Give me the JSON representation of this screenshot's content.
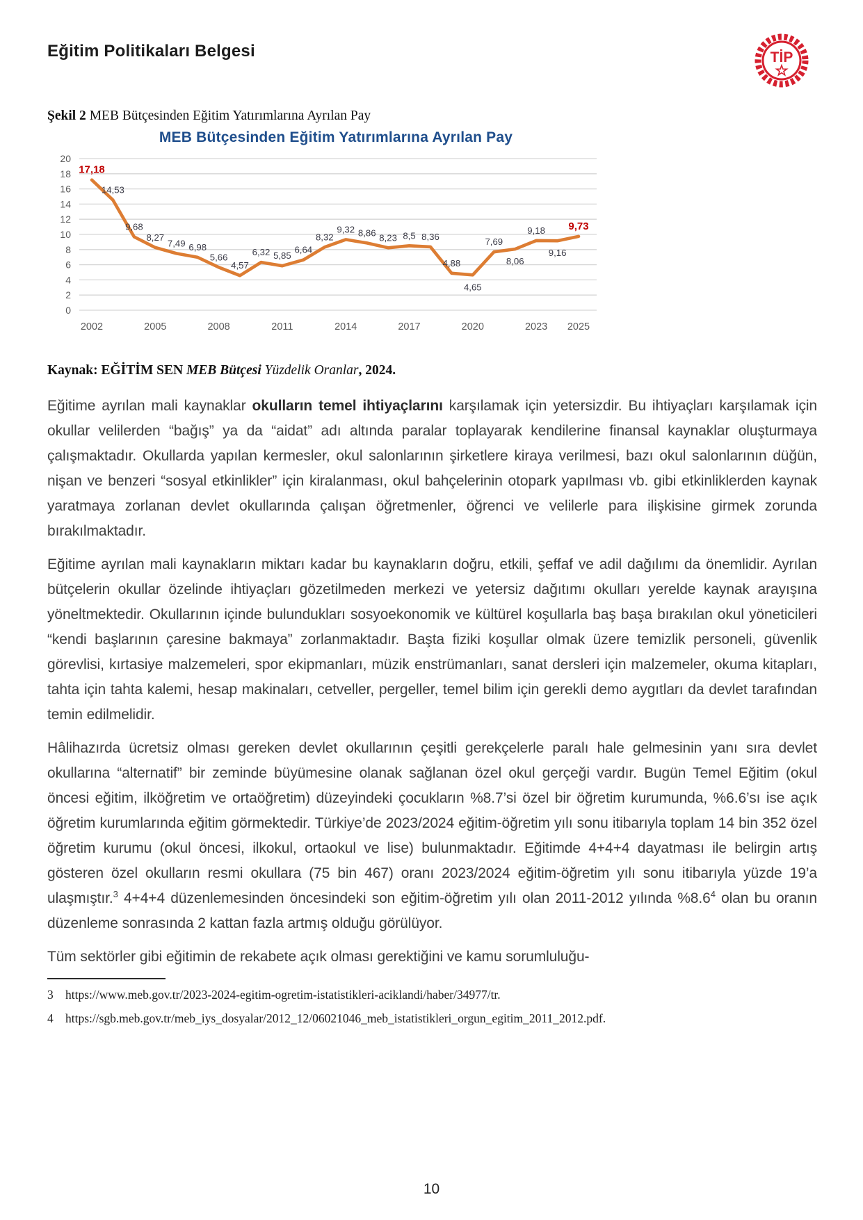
{
  "page": {
    "header_title": "Eğitim Politikaları Belgesi",
    "logo_text": "TİP",
    "page_number": "10"
  },
  "figure": {
    "caption_label": "Şekil 2",
    "caption_text": " MEB Bütçesinden Eğitim Yatırımlarına Ayrılan Pay",
    "source": {
      "prefix": "Kaynak: EĞİTİM SEN ",
      "title_italic": "MEB Bütçesi ",
      "subtitle_italic": "Yüzdelik Oranlar",
      "suffix": ", 2024."
    }
  },
  "chart_data": {
    "type": "line",
    "title": "MEB Bütçesinden Eğitim Yatırımlarına Ayrılan Pay",
    "x": [
      2002,
      2003,
      2004,
      2005,
      2006,
      2007,
      2008,
      2009,
      2010,
      2011,
      2012,
      2013,
      2014,
      2015,
      2016,
      2017,
      2018,
      2019,
      2020,
      2021,
      2022,
      2023,
      2024,
      2025
    ],
    "values": [
      17.18,
      14.53,
      9.68,
      8.27,
      7.49,
      6.98,
      5.66,
      4.57,
      6.32,
      5.85,
      6.64,
      8.32,
      9.32,
      8.86,
      8.23,
      8.5,
      8.36,
      4.88,
      4.65,
      7.69,
      8.06,
      9.18,
      9.16,
      9.73
    ],
    "labels": [
      "17,18",
      "14,53",
      "9,68",
      "8,27",
      "7,49",
      "6,98",
      "5,66",
      "4,57",
      "6,32",
      "5,85",
      "6,64",
      "8,32",
      "9,32",
      "8,86",
      "8,23",
      "8,5",
      "8,36",
      "4,88",
      "4,65",
      "7,69",
      "8,06",
      "9,18",
      "9,16",
      "9,73"
    ],
    "x_ticks": [
      2002,
      2005,
      2008,
      2011,
      2014,
      2017,
      2020,
      2023,
      2025
    ],
    "y_ticks": [
      0,
      2,
      4,
      6,
      8,
      10,
      12,
      14,
      16,
      18,
      20
    ],
    "ylim": [
      0,
      20
    ],
    "grid": true,
    "legend": "none",
    "line_color": "#DD7D33",
    "label_color": "#3B3B47",
    "highlight_color": "#C00000",
    "highlight_indices": [
      0,
      23
    ],
    "label_below_indices": [
      18,
      20,
      22
    ],
    "title_color": "#1F4E8C",
    "axis_color": "#595959",
    "grid_color": "#D6D6D6"
  },
  "body": {
    "p1": {
      "pre": "Eğitime ayrılan mali kaynaklar ",
      "bold": "okulların temel ihtiyaçlarını",
      "post": " karşılamak için yetersizdir. Bu ihtiyaçları karşılamak için okullar velilerden “bağış” ya da “aidat” adı altında paralar toplayarak kendilerine finansal kaynaklar oluşturmaya çalışmaktadır. Okullarda yapılan kermesler, okul salonlarının şirketlere kiraya verilmesi, bazı okul salonlarının düğün, nişan ve benzeri “sosyal etkinlikler” için kiralanması, okul bahçelerinin otopark yapılması vb. gibi etkinliklerden kaynak yaratmaya zorlanan devlet okullarında çalışan öğretmenler, öğrenci ve velilerle para ilişkisine girmek zorunda bırakılmaktadır."
    },
    "p2": "Eğitime ayrılan mali kaynakların miktarı kadar bu kaynakların doğru, etkili, şeffaf ve adil dağılımı da önemlidir. Ayrılan bütçelerin okullar özelinde ihtiyaçları gözetilmeden merkezi ve yetersiz dağıtımı okulları yerelde kaynak arayışına yöneltmektedir. Okullarının içinde bulundukları sosyoekonomik ve kültürel koşullarla baş başa bırakılan okul yöneticileri “kendi başlarının çaresine bakmaya” zorlanmaktadır. Başta fiziki koşullar olmak üzere temizlik personeli, güvenlik görevlisi, kırtasiye malzemeleri, spor ekipmanları, müzik enstrümanları, sanat dersleri için malzemeler, okuma kitapları, tahta için tahta kalemi, hesap makinaları, cetveller, pergeller, temel bilim için gerekli demo aygıtları da devlet tarafından temin edilmelidir.",
    "p3": {
      "r1": "Hâlihazırda ücretsiz olması gereken devlet okullarının çeşitli gerekçelerle paralı hale gelmesinin yanı sıra devlet okullarına “alternatif” bir zeminde büyümesine olanak sağlanan özel okul gerçeği vardır. Bugün Temel Eğitim (okul öncesi eğitim, ilköğretim ve ortaöğretim) düzeyindeki çocukların %8.7’si özel bir öğretim kurumunda, %6.6’sı ise açık öğretim kurumlarında eğitim görmektedir. Türkiye’de 2023/2024 eğitim-öğretim yılı sonu itibarıyla toplam 14 bin 352 özel öğretim kurumu (okul öncesi, ilkokul, ortaokul ve lise) bulunmaktadır. Eğitimde 4+4+4 dayatması ile belirgin artış gösteren özel okulların resmi okullara (75 bin 467) oranı 2023/2024 eğitim-öğretim yılı sonu itibarıyla yüzde 19’a ulaşmıştır.",
      "sup3": "3",
      "r2": " 4+4+4 düzenlemesinden öncesindeki son eğitim-öğretim yılı olan 2011-2012 yılında %8.6",
      "sup4": "4",
      "r3": " olan bu oranın düzenleme sonrasında 2 kattan fazla artmış olduğu görülüyor."
    },
    "p4": "Tüm sektörler gibi eğitimin de rekabete açık olması gerektiğini ve kamu sorumluluğu-"
  },
  "footnotes": [
    {
      "num": "3",
      "text": "https://www.meb.gov.tr/2023-2024-egitim-ogretim-istatistikleri-aciklandi/haber/34977/tr."
    },
    {
      "num": "4",
      "text": "https://sgb.meb.gov.tr/meb_iys_dosyalar/2012_12/06021046_meb_istatistikleri_orgun_egitim_2011_2012.pdf."
    }
  ]
}
